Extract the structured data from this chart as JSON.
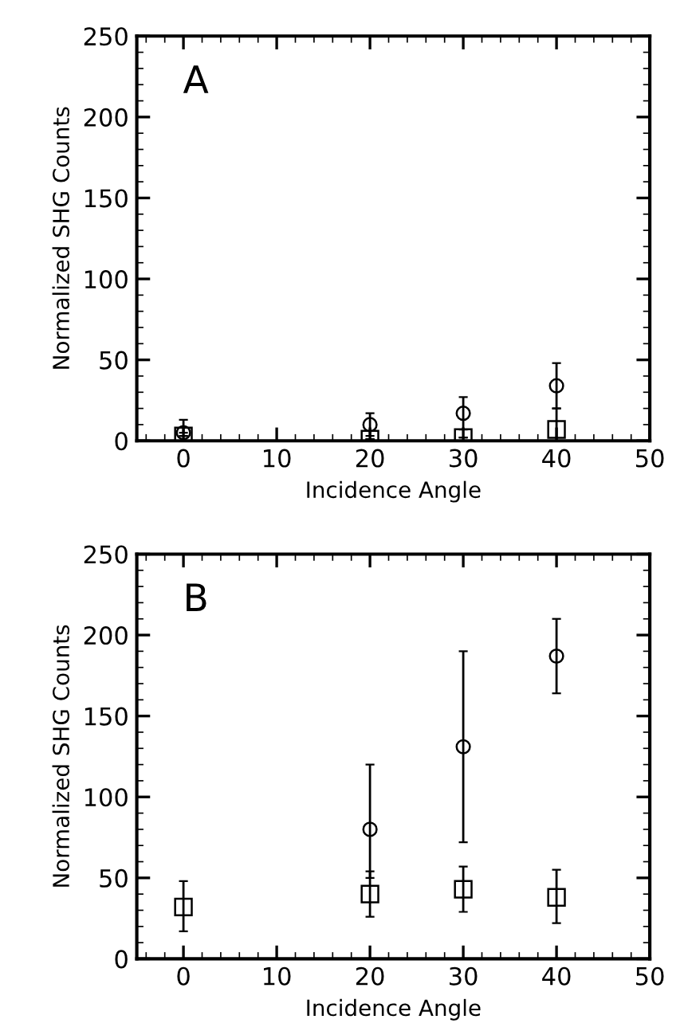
{
  "chart_data": [
    {
      "type": "scatter",
      "title": "A",
      "xlabel": "Incidence Angle",
      "ylabel": "Normalized SHG Counts",
      "x": [
        0,
        20,
        30,
        40
      ],
      "series": [
        {
          "color": "#000000",
          "marker": "circle",
          "values": [
            5,
            10,
            17,
            34
          ],
          "errors": [
            [
              5,
              13
            ],
            [
              3,
              17
            ],
            [
              7,
              27
            ],
            [
              20,
              48
            ]
          ]
        },
        {
          "color": "#000000",
          "marker": "square",
          "values": [
            3,
            1,
            2,
            7
          ],
          "errors": [
            null,
            null,
            null,
            [
              0,
              20
            ]
          ]
        }
      ],
      "xlim": [
        -5,
        50
      ],
      "ylim": [
        0,
        250
      ],
      "xticks": [
        0,
        10,
        20,
        30,
        40,
        50
      ],
      "yticks": [
        0,
        50,
        100,
        150,
        200,
        250
      ],
      "grid": false,
      "legend": false
    },
    {
      "type": "scatter",
      "title": "B",
      "xlabel": "Incidence Angle",
      "ylabel": "Normalized SHG Counts",
      "x": [
        0,
        20,
        30,
        40
      ],
      "series": [
        {
          "color": "#000000",
          "marker": "circle",
          "values": [
            null,
            80,
            131,
            187
          ],
          "errors": [
            null,
            [
              50,
              120
            ],
            [
              72,
              190
            ],
            [
              164,
              210
            ]
          ]
        },
        {
          "color": "#000000",
          "marker": "square",
          "values": [
            32,
            40,
            43,
            38
          ],
          "errors": [
            [
              17,
              48
            ],
            [
              26,
              54
            ],
            [
              29,
              57
            ],
            [
              22,
              55
            ]
          ]
        }
      ],
      "xlim": [
        -5,
        50
      ],
      "ylim": [
        0,
        250
      ],
      "xticks": [
        0,
        10,
        20,
        30,
        40,
        50
      ],
      "yticks": [
        0,
        50,
        100,
        150,
        200,
        250
      ],
      "grid": false,
      "legend": false
    }
  ]
}
